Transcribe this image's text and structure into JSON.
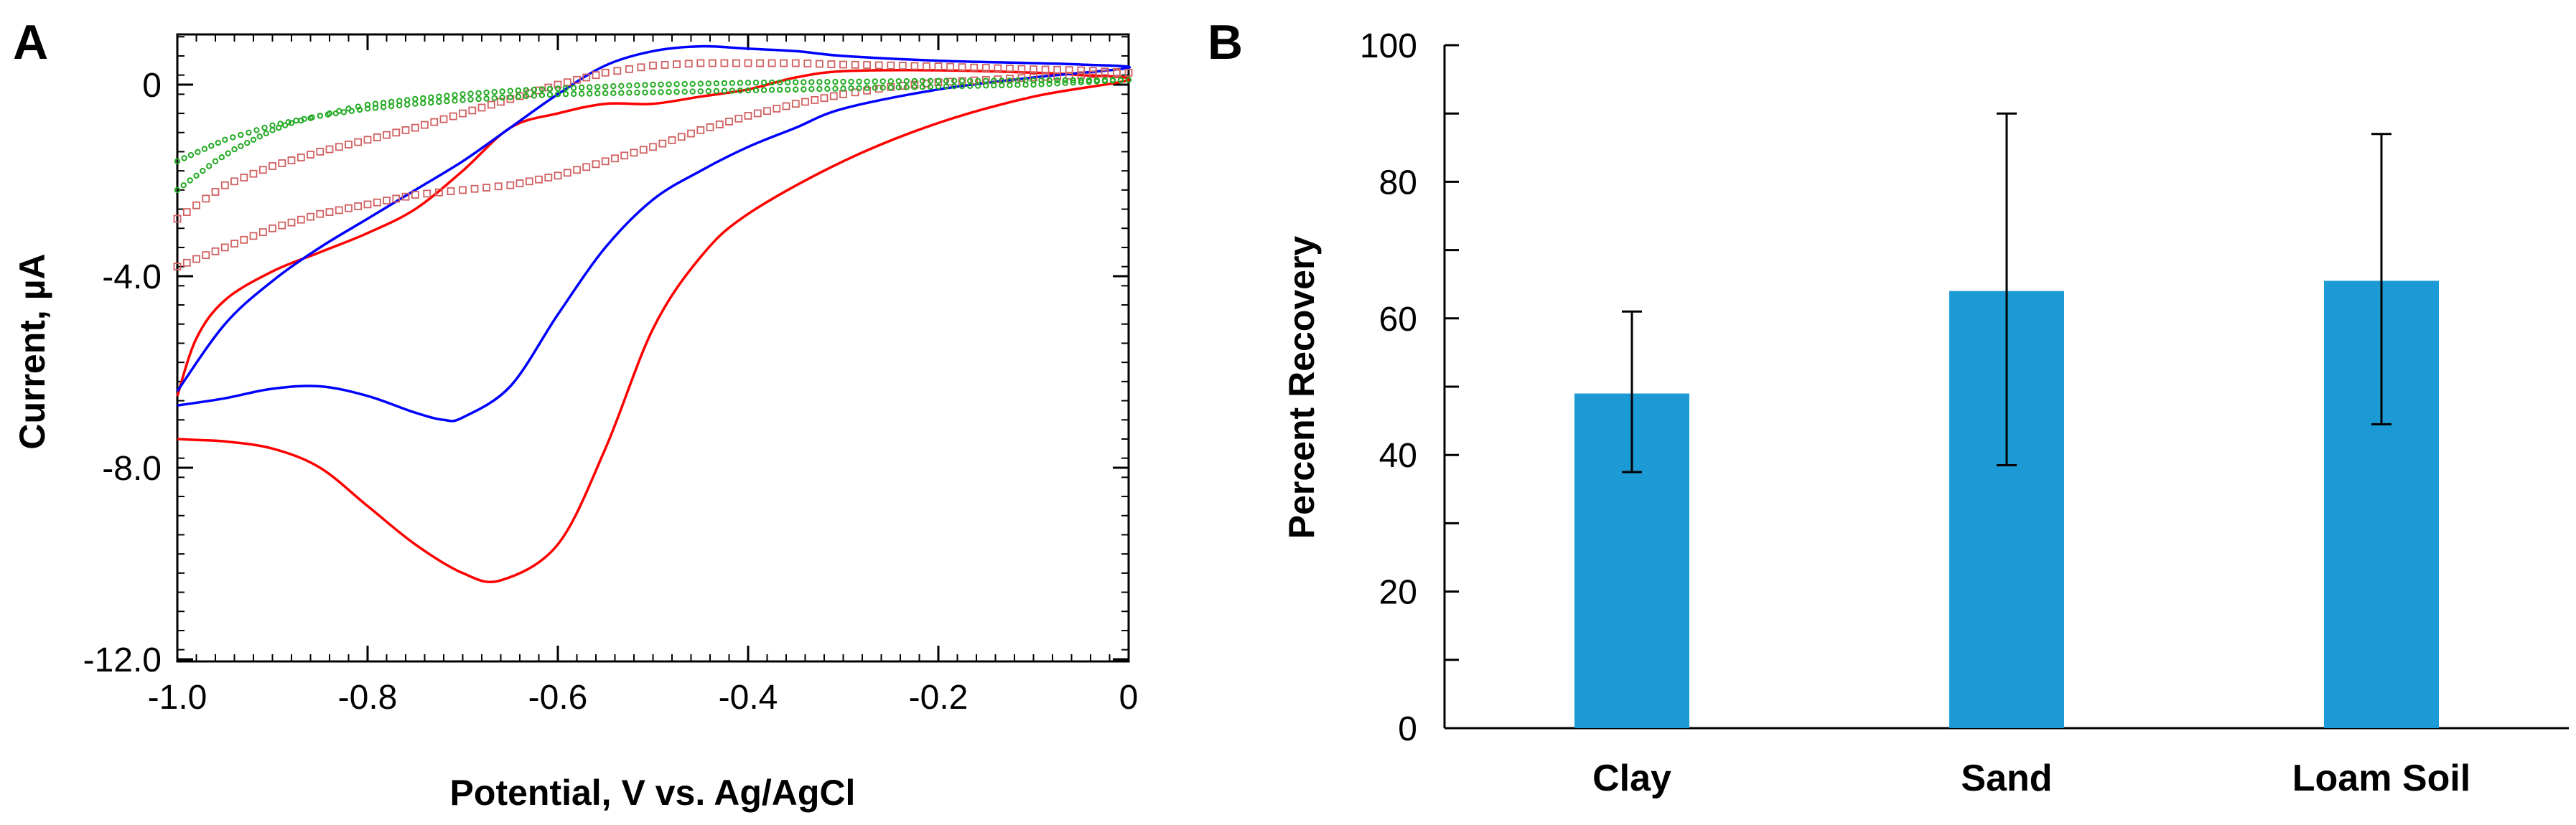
{
  "chart_data": [
    {
      "panel": "A",
      "type": "line",
      "title": "",
      "xlabel": "Potential, V vs. Ag/AgCl",
      "ylabel": "Current, µA",
      "xlim": [
        -1.0,
        0
      ],
      "ylim": [
        -12.0,
        1.0
      ],
      "x_ticks": [
        -1.0,
        -0.8,
        -0.6,
        -0.4,
        -0.2,
        0
      ],
      "x_tick_labels": [
        "-1.0",
        "-0.8",
        "-0.6",
        "-0.4",
        "-0.2",
        "0"
      ],
      "y_ticks": [
        0,
        -4,
        -8,
        -12
      ],
      "y_tick_labels": [
        "0",
        "-4.0",
        "-8.0",
        "-12.0"
      ],
      "grid": false,
      "series": [
        {
          "name": "red solid",
          "color": "#ff0000",
          "style": "solid",
          "x": [
            -1.0,
            -0.98,
            -0.95,
            -0.9,
            -0.85,
            -0.8,
            -0.75,
            -0.7,
            -0.66,
            -0.6,
            -0.55,
            -0.5,
            -0.45,
            -0.4,
            -0.3,
            -0.2,
            -0.1,
            0,
            -0.05,
            -0.1,
            -0.2,
            -0.3,
            -0.35,
            -0.4,
            -0.45,
            -0.5,
            -0.55,
            -0.6,
            -0.65,
            -0.7,
            -0.75,
            -0.8,
            -0.85,
            -0.9,
            -0.95,
            -0.98,
            -1.0
          ],
          "y": [
            -7.4,
            -7.42,
            -7.45,
            -7.6,
            -8.0,
            -8.8,
            -9.6,
            -10.2,
            -10.35,
            -9.6,
            -7.6,
            -5.1,
            -3.6,
            -2.7,
            -1.6,
            -0.8,
            -0.25,
            0.1,
            0.2,
            0.25,
            0.3,
            0.28,
            0.15,
            -0.1,
            -0.25,
            -0.4,
            -0.4,
            -0.6,
            -0.9,
            -1.8,
            -2.6,
            -3.1,
            -3.5,
            -3.9,
            -4.5,
            -5.3,
            -6.5
          ]
        },
        {
          "name": "blue solid",
          "color": "#0000ff",
          "style": "solid",
          "x": [
            -1.0,
            -0.95,
            -0.9,
            -0.85,
            -0.8,
            -0.75,
            -0.72,
            -0.7,
            -0.65,
            -0.6,
            -0.55,
            -0.5,
            -0.45,
            -0.4,
            -0.35,
            -0.3,
            -0.2,
            -0.1,
            0,
            -0.05,
            -0.1,
            -0.2,
            -0.3,
            -0.35,
            -0.4,
            -0.45,
            -0.5,
            -0.55,
            -0.6,
            -0.65,
            -0.7,
            -0.75,
            -0.8,
            -0.85,
            -0.9,
            -0.95,
            -1.0
          ],
          "y": [
            -6.7,
            -6.55,
            -6.35,
            -6.3,
            -6.5,
            -6.85,
            -7.0,
            -6.95,
            -6.3,
            -4.8,
            -3.4,
            -2.4,
            -1.8,
            -1.3,
            -0.9,
            -0.5,
            -0.1,
            0.15,
            0.35,
            0.42,
            0.45,
            0.5,
            0.6,
            0.7,
            0.75,
            0.8,
            0.7,
            0.4,
            -0.2,
            -0.9,
            -1.6,
            -2.2,
            -2.8,
            -3.4,
            -4.1,
            -5.0,
            -6.4
          ]
        },
        {
          "name": "red open squares",
          "color": "#d06060",
          "style": "markers",
          "x": [
            -1.0,
            -0.95,
            -0.9,
            -0.85,
            -0.8,
            -0.75,
            -0.7,
            -0.65,
            -0.6,
            -0.55,
            -0.5,
            -0.45,
            -0.4,
            -0.35,
            -0.3,
            -0.25,
            -0.2,
            -0.15,
            -0.1,
            -0.05,
            0,
            -0.05,
            -0.1,
            -0.15,
            -0.2,
            -0.25,
            -0.3,
            -0.35,
            -0.4,
            -0.45,
            -0.5,
            -0.55,
            -0.6,
            -0.65,
            -0.7,
            -0.75,
            -0.8,
            -0.85,
            -0.9,
            -0.95,
            -1.0
          ],
          "y": [
            -3.8,
            -3.4,
            -3.0,
            -2.7,
            -2.5,
            -2.3,
            -2.2,
            -2.1,
            -1.9,
            -1.6,
            -1.3,
            -0.95,
            -0.65,
            -0.4,
            -0.2,
            -0.05,
            0.05,
            0.1,
            0.15,
            0.2,
            0.25,
            0.3,
            0.32,
            0.35,
            0.38,
            0.4,
            0.42,
            0.45,
            0.45,
            0.45,
            0.4,
            0.25,
            0.0,
            -0.3,
            -0.6,
            -0.9,
            -1.15,
            -1.4,
            -1.7,
            -2.1,
            -2.8
          ]
        },
        {
          "name": "green dots",
          "color": "#22aa22",
          "style": "markers",
          "x": [
            -1.0,
            -0.98,
            -0.96,
            -0.94,
            -0.92,
            -0.9,
            -0.88,
            -0.86,
            -0.84,
            -0.82,
            -0.8,
            -0.75,
            -0.7,
            -0.65,
            -0.6,
            -0.55,
            -0.5,
            -0.45,
            -0.4,
            -0.35,
            -0.3,
            -0.25,
            -0.2,
            -0.15,
            -0.1,
            -0.05,
            0,
            -0.05,
            -0.1,
            -0.15,
            -0.2,
            -0.25,
            -0.3,
            -0.35,
            -0.4,
            -0.45,
            -0.5,
            -0.55,
            -0.6,
            -0.65,
            -0.7,
            -0.75,
            -0.8,
            -0.85,
            -0.9,
            -0.95,
            -1.0
          ],
          "y": [
            -2.2,
            -1.9,
            -1.6,
            -1.35,
            -1.15,
            -0.95,
            -0.8,
            -0.7,
            -0.6,
            -0.5,
            -0.42,
            -0.3,
            -0.2,
            -0.13,
            -0.08,
            -0.04,
            0.0,
            0.02,
            0.04,
            0.05,
            0.06,
            0.07,
            0.08,
            0.08,
            0.09,
            0.09,
            0.1,
            0.05,
            0.0,
            -0.02,
            -0.04,
            -0.06,
            -0.08,
            -0.1,
            -0.12,
            -0.14,
            -0.16,
            -0.18,
            -0.2,
            -0.26,
            -0.32,
            -0.4,
            -0.5,
            -0.65,
            -0.85,
            -1.15,
            -1.6
          ]
        }
      ]
    },
    {
      "panel": "B",
      "type": "bar",
      "title": "",
      "xlabel": "",
      "ylabel": "Percent Recovery",
      "ylim": [
        0,
        100
      ],
      "y_ticks": [
        0,
        20,
        40,
        60,
        80,
        100
      ],
      "y_tick_labels": [
        "0",
        "20",
        "40",
        "60",
        "80",
        "100"
      ],
      "grid": false,
      "categories": [
        "Clay",
        "Sand",
        "Loam Soil"
      ],
      "values": [
        49,
        64,
        65.5
      ],
      "error_low": [
        37.5,
        38.5,
        44.5
      ],
      "error_high": [
        61,
        90,
        87
      ],
      "bar_color": "#1b9ad6"
    }
  ],
  "panel_labels": [
    "A",
    "B"
  ]
}
